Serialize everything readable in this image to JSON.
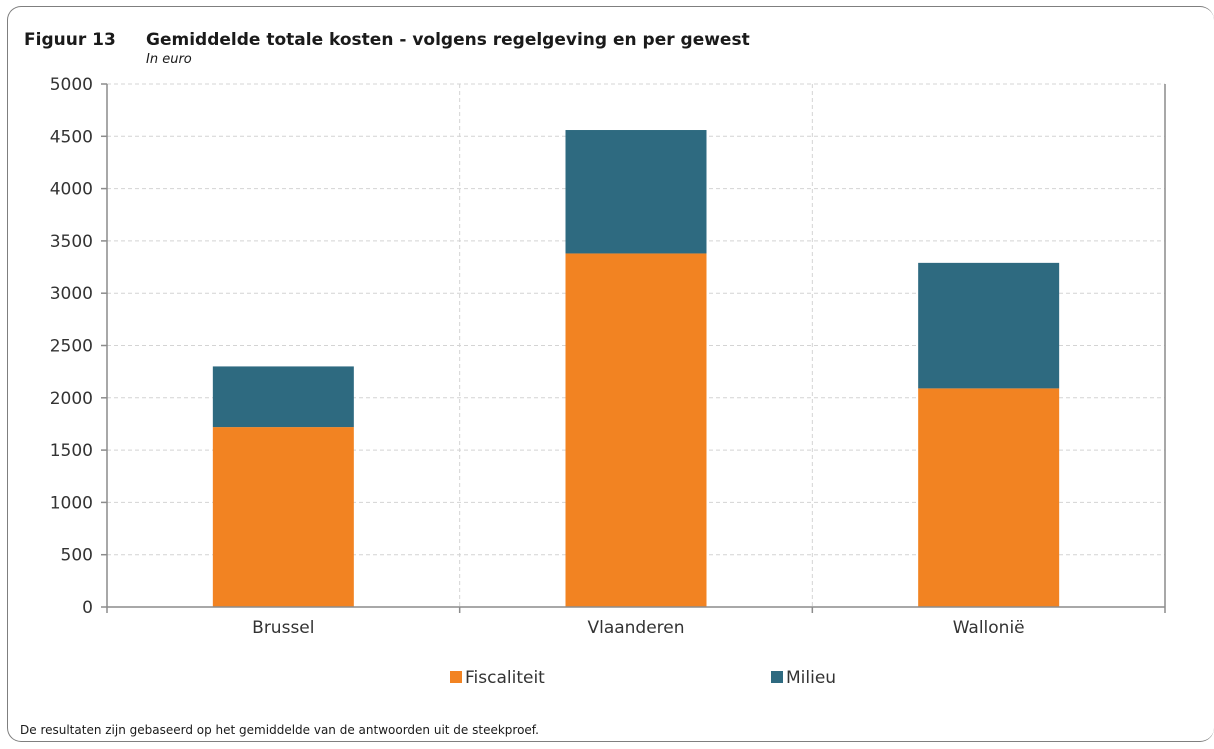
{
  "figure": {
    "label": "Figuur 13",
    "title": "Gemiddelde totale kosten - volgens regelgeving en per gewest",
    "subtitle": "In euro",
    "note": "De resultaten zijn gebaseerd op het gemiddelde van de antwoorden uit de steekproef."
  },
  "chart_data": {
    "type": "bar",
    "stacked": true,
    "title": "Gemiddelde totale kosten - volgens regelgeving en per gewest",
    "subtitle": "In euro",
    "xlabel": "",
    "ylabel": "",
    "categories": [
      "Brussel",
      "Vlaanderen",
      "Wallonië"
    ],
    "series": [
      {
        "name": "Fiscaliteit",
        "color": "#f28322",
        "values": [
          1720,
          3380,
          2090
        ]
      },
      {
        "name": "Milieu",
        "color": "#2e6a80",
        "values": [
          580,
          1180,
          1200
        ]
      }
    ],
    "ylim": [
      0,
      5000
    ],
    "yticks": [
      0,
      500,
      1000,
      1500,
      2000,
      2500,
      3000,
      3500,
      4000,
      4500,
      5000
    ],
    "grid": true,
    "legend": "bottom"
  }
}
